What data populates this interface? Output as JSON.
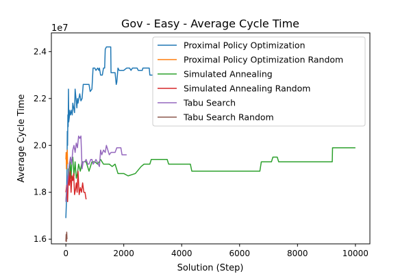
{
  "chart_data": {
    "type": "line",
    "title": "Gov - Easy - Average Cycle Time",
    "xlabel": "Solution (Step)",
    "ylabel": "Average Cycle Time",
    "offset_text": "1e7",
    "xlim": [
      -500,
      10500
    ],
    "ylim": [
      15800000,
      24800000
    ],
    "x_ticks": [
      0,
      2000,
      4000,
      6000,
      8000,
      10000
    ],
    "x_tick_labels": [
      "0",
      "2000",
      "4000",
      "6000",
      "8000",
      "10000"
    ],
    "y_ticks": [
      16000000,
      18000000,
      20000000,
      22000000,
      24000000
    ],
    "y_tick_labels": [
      "1.6",
      "1.8",
      "2.0",
      "2.2",
      "2.4"
    ],
    "grid": false,
    "legend_position": "top-right",
    "series": [
      {
        "name": "Proximal Policy Optimization",
        "color": "#1f77b4",
        "points": [
          [
            0,
            16900000
          ],
          [
            20,
            17600000
          ],
          [
            30,
            18200000
          ],
          [
            40,
            19000000
          ],
          [
            50,
            20600000
          ],
          [
            60,
            20000000
          ],
          [
            70,
            21300000
          ],
          [
            80,
            20800000
          ],
          [
            90,
            22400000
          ],
          [
            100,
            21000000
          ],
          [
            120,
            21200000
          ],
          [
            140,
            21500000
          ],
          [
            160,
            21300000
          ],
          [
            200,
            21500000
          ],
          [
            220,
            21300000
          ],
          [
            240,
            21800000
          ],
          [
            300,
            21400000
          ],
          [
            320,
            22400000
          ],
          [
            380,
            21600000
          ],
          [
            400,
            22000000
          ],
          [
            420,
            21800000
          ],
          [
            480,
            22200000
          ],
          [
            520,
            21900000
          ],
          [
            560,
            22000000
          ],
          [
            600,
            22600000
          ],
          [
            700,
            22600000
          ],
          [
            800,
            22600000
          ],
          [
            840,
            22300000
          ],
          [
            900,
            22400000
          ],
          [
            940,
            23300000
          ],
          [
            1000,
            23300000
          ],
          [
            1040,
            23200000
          ],
          [
            1100,
            23300000
          ],
          [
            1140,
            23200000
          ],
          [
            1160,
            23300000
          ],
          [
            1200,
            23000000
          ],
          [
            1260,
            23000000
          ],
          [
            1300,
            23300000
          ],
          [
            1340,
            23300000
          ],
          [
            1360,
            24100000
          ],
          [
            1400,
            24200000
          ],
          [
            1550,
            24200000
          ],
          [
            1560,
            23100000
          ],
          [
            1600,
            23100000
          ],
          [
            1700,
            23100000
          ],
          [
            1740,
            22600000
          ],
          [
            1760,
            22700000
          ],
          [
            1800,
            23300000
          ],
          [
            1840,
            23200000
          ],
          [
            2000,
            23200000
          ],
          [
            2100,
            23300000
          ],
          [
            2200,
            23300000
          ],
          [
            2250,
            23200000
          ],
          [
            2300,
            23300000
          ],
          [
            2460,
            23300000
          ],
          [
            2500,
            23200000
          ],
          [
            2640,
            23200000
          ],
          [
            2660,
            23300000
          ],
          [
            2880,
            23300000
          ],
          [
            2900,
            23000000
          ],
          [
            3000,
            23000000
          ]
        ]
      },
      {
        "name": "Proximal Policy Optimization Random",
        "color": "#ff7f0e",
        "points": [
          [
            0,
            19400000
          ],
          [
            10,
            19700000
          ],
          [
            20,
            19000000
          ],
          [
            30,
            19400000
          ],
          [
            40,
            19300000
          ],
          [
            50,
            19800000
          ],
          [
            60,
            19200000
          ]
        ]
      },
      {
        "name": "Simulated Annealing",
        "color": "#2ca02c",
        "points": [
          [
            0,
            17600000
          ],
          [
            30,
            18200000
          ],
          [
            60,
            18000000
          ],
          [
            90,
            19000000
          ],
          [
            120,
            18400000
          ],
          [
            150,
            19300000
          ],
          [
            180,
            18600000
          ],
          [
            210,
            19400000
          ],
          [
            240,
            19500000
          ],
          [
            280,
            18700000
          ],
          [
            320,
            19300000
          ],
          [
            360,
            18600000
          ],
          [
            400,
            18800000
          ],
          [
            440,
            19200000
          ],
          [
            500,
            18900000
          ],
          [
            560,
            19300000
          ],
          [
            700,
            19300000
          ],
          [
            800,
            18900000
          ],
          [
            900,
            19300000
          ],
          [
            1000,
            19300000
          ],
          [
            1100,
            19200000
          ],
          [
            1200,
            19400000
          ],
          [
            1300,
            19200000
          ],
          [
            1500,
            19200000
          ],
          [
            1600,
            19100000
          ],
          [
            1700,
            19200000
          ],
          [
            1800,
            18800000
          ],
          [
            2000,
            18800000
          ],
          [
            2150,
            18700000
          ],
          [
            2400,
            18800000
          ],
          [
            2600,
            19100000
          ],
          [
            2700,
            19200000
          ],
          [
            2900,
            19200000
          ],
          [
            2950,
            19400000
          ],
          [
            3500,
            19400000
          ],
          [
            3550,
            19200000
          ],
          [
            4300,
            19200000
          ],
          [
            4350,
            18900000
          ],
          [
            6700,
            18900000
          ],
          [
            6750,
            19300000
          ],
          [
            7100,
            19300000
          ],
          [
            7150,
            19500000
          ],
          [
            7300,
            19500000
          ],
          [
            7350,
            19300000
          ],
          [
            9200,
            19300000
          ],
          [
            9210,
            19900000
          ],
          [
            10000,
            19900000
          ]
        ]
      },
      {
        "name": "Simulated Annealing Random",
        "color": "#d62728",
        "points": [
          [
            0,
            18000000
          ],
          [
            30,
            18300000
          ],
          [
            60,
            17600000
          ],
          [
            90,
            18800000
          ],
          [
            120,
            18300000
          ],
          [
            150,
            18900000
          ],
          [
            180,
            18000000
          ],
          [
            210,
            18700000
          ],
          [
            240,
            18500000
          ],
          [
            270,
            18800000
          ],
          [
            300,
            17900000
          ],
          [
            330,
            18100000
          ],
          [
            360,
            18400000
          ],
          [
            390,
            18000000
          ],
          [
            420,
            18900000
          ],
          [
            460,
            17900000
          ],
          [
            500,
            18200000
          ],
          [
            540,
            18000000
          ],
          [
            580,
            18400000
          ],
          [
            620,
            18000000
          ],
          [
            660,
            18000000
          ],
          [
            700,
            17700000
          ]
        ]
      },
      {
        "name": "Tabu Search",
        "color": "#9467bd",
        "points": [
          [
            0,
            17600000
          ],
          [
            40,
            18200000
          ],
          [
            80,
            18700000
          ],
          [
            120,
            19200000
          ],
          [
            160,
            19500000
          ],
          [
            200,
            19200000
          ],
          [
            240,
            19800000
          ],
          [
            280,
            20000000
          ],
          [
            320,
            19700000
          ],
          [
            360,
            20100000
          ],
          [
            400,
            19900000
          ],
          [
            440,
            20400000
          ],
          [
            480,
            20300000
          ],
          [
            520,
            20400000
          ],
          [
            560,
            19000000
          ],
          [
            600,
            19300000
          ],
          [
            650,
            19300000
          ],
          [
            700,
            19400000
          ],
          [
            760,
            19200000
          ],
          [
            800,
            19200000
          ],
          [
            860,
            19400000
          ],
          [
            900,
            19400000
          ],
          [
            940,
            19200000
          ],
          [
            1000,
            19300000
          ],
          [
            1040,
            19400000
          ],
          [
            1080,
            19300000
          ],
          [
            1160,
            19100000
          ],
          [
            1200,
            19800000
          ],
          [
            1240,
            19600000
          ],
          [
            1300,
            19800000
          ],
          [
            1360,
            19700000
          ],
          [
            1400,
            20000000
          ],
          [
            1500,
            19600000
          ],
          [
            1560,
            19700000
          ],
          [
            1700,
            19700000
          ],
          [
            1760,
            19900000
          ],
          [
            1900,
            19900000
          ],
          [
            1940,
            19600000
          ],
          [
            2100,
            19600000
          ]
        ]
      },
      {
        "name": "Tabu Search Random",
        "color": "#8c564b",
        "points": [
          [
            0,
            15900000
          ],
          [
            10,
            16200000
          ],
          [
            20,
            15900000
          ],
          [
            30,
            16300000
          ],
          [
            40,
            16000000
          ]
        ]
      }
    ]
  }
}
